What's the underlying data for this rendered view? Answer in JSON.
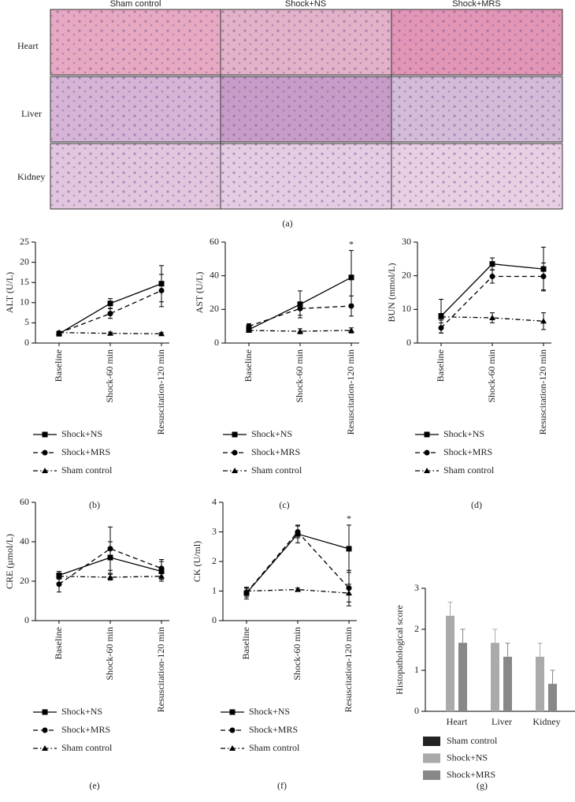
{
  "figure_a": {
    "columns": [
      "Sham control",
      "Shock+NS",
      "Shock+MRS"
    ],
    "rows": [
      "Heart",
      "Liver",
      "Kidney"
    ],
    "label": "(a)"
  },
  "chart_data": [
    {
      "type": "line",
      "panel_label": "(b)",
      "ylabel": "ALT (U/L)",
      "categories": [
        "Baseline",
        "Shock-60 min",
        "Resuscitation-120 min"
      ],
      "ylim": [
        0,
        25
      ],
      "yticks": [
        0,
        5,
        10,
        15,
        20,
        25
      ],
      "series": [
        {
          "name": "Shock+NS",
          "color": "#000000",
          "line_style": "solid",
          "marker": "square",
          "values": [
            2.3,
            9.8,
            14.7
          ],
          "errors": [
            0.5,
            1.2,
            4.5
          ]
        },
        {
          "name": "Shock+MRS",
          "color": "#000000",
          "line_style": "dashed",
          "marker": "circle",
          "values": [
            2.5,
            7.3,
            13.0
          ],
          "errors": [
            0.4,
            1.2,
            4.0
          ]
        },
        {
          "name": "Sham control",
          "color": "#000000",
          "line_style": "dashdot",
          "marker": "triangle",
          "values": [
            2.6,
            2.4,
            2.3
          ],
          "errors": [
            0.3,
            0.3,
            0.3
          ]
        }
      ]
    },
    {
      "type": "line",
      "panel_label": "(c)",
      "ylabel": "AST (U/L)",
      "categories": [
        "Baseline",
        "Shock-60 min",
        "Resuscitation-120 min"
      ],
      "ylim": [
        0,
        60
      ],
      "yticks": [
        0,
        20,
        40,
        60
      ],
      "annotation": "*",
      "series": [
        {
          "name": "Shock+NS",
          "color": "#000000",
          "line_style": "solid",
          "marker": "square",
          "values": [
            8,
            23,
            39
          ],
          "errors": [
            1.5,
            8,
            16
          ]
        },
        {
          "name": "Shock+MRS",
          "color": "#000000",
          "line_style": "dashed",
          "marker": "circle",
          "values": [
            10,
            20.5,
            22
          ],
          "errors": [
            1.5,
            4,
            6
          ]
        },
        {
          "name": "Sham control",
          "color": "#000000",
          "line_style": "dashdot",
          "marker": "triangle",
          "values": [
            7.5,
            7,
            7.5
          ],
          "errors": [
            1,
            1.5,
            1.5
          ]
        }
      ]
    },
    {
      "type": "line",
      "panel_label": "(d)",
      "ylabel": "BUN (mmol/L)",
      "categories": [
        "Baseline",
        "Shock-60 min",
        "Resuscitation-120 min"
      ],
      "ylim": [
        0,
        30
      ],
      "yticks": [
        0,
        10,
        20,
        30
      ],
      "series": [
        {
          "name": "Shock+NS",
          "color": "#000000",
          "line_style": "solid",
          "marker": "square",
          "values": [
            8,
            23.5,
            22
          ],
          "errors": [
            5,
            1.8,
            6.5
          ]
        },
        {
          "name": "Shock+MRS",
          "color": "#000000",
          "line_style": "dashed",
          "marker": "circle",
          "values": [
            4.5,
            19.8,
            19.8
          ],
          "errors": [
            1.5,
            2,
            4
          ]
        },
        {
          "name": "Sham control",
          "color": "#000000",
          "line_style": "dashdot",
          "marker": "triangle",
          "values": [
            7.8,
            7.5,
            6.5
          ],
          "errors": [
            1,
            1.5,
            2.5
          ]
        }
      ]
    },
    {
      "type": "line",
      "panel_label": "(e)",
      "ylabel": "CRE (μmol/L)",
      "categories": [
        "Baseline",
        "Shock-60 min",
        "Resuscitation-120 min"
      ],
      "ylim": [
        0,
        60
      ],
      "yticks": [
        0,
        20,
        40,
        60
      ],
      "series": [
        {
          "name": "Shock+NS",
          "color": "#000000",
          "line_style": "solid",
          "marker": "square",
          "values": [
            23,
            32,
            25
          ],
          "errors": [
            2,
            8,
            5
          ]
        },
        {
          "name": "Shock+MRS",
          "color": "#000000",
          "line_style": "dashed",
          "marker": "circle",
          "values": [
            18.5,
            36.5,
            26.5
          ],
          "errors": [
            4,
            11,
            4.5
          ]
        },
        {
          "name": "Sham control",
          "color": "#000000",
          "line_style": "dashdot",
          "marker": "triangle",
          "values": [
            22.5,
            22,
            22.5
          ],
          "errors": [
            1,
            1.5,
            1.5
          ]
        }
      ]
    },
    {
      "type": "line",
      "panel_label": "(f)",
      "ylabel": "CK (U/ml)",
      "categories": [
        "Baseline",
        "Shock-60 min",
        "Resuscitation-120 min"
      ],
      "ylim": [
        0,
        4
      ],
      "yticks": [
        0,
        1,
        2,
        3,
        4
      ],
      "annotation": "*",
      "series": [
        {
          "name": "Shock+NS",
          "color": "#000000",
          "line_style": "solid",
          "marker": "square",
          "values": [
            0.93,
            2.93,
            2.43
          ],
          "errors": [
            0.2,
            0.3,
            0.8
          ]
        },
        {
          "name": "Shock+MRS",
          "color": "#000000",
          "line_style": "dashed",
          "marker": "circle",
          "values": [
            0.95,
            3.0,
            1.1
          ],
          "errors": [
            0.15,
            0.2,
            0.6
          ]
        },
        {
          "name": "Sham control",
          "color": "#000000",
          "line_style": "dashdot",
          "marker": "triangle",
          "values": [
            1.0,
            1.05,
            0.93
          ],
          "errors": [
            0.1,
            0.05,
            0.3
          ]
        }
      ]
    },
    {
      "type": "bar",
      "panel_label": "(g)",
      "ylabel": "Histopathological score",
      "categories": [
        "Heart",
        "Liver",
        "Kidney"
      ],
      "ylim": [
        0,
        3
      ],
      "yticks": [
        0,
        1,
        2,
        3
      ],
      "series": [
        {
          "name": "Sham control",
          "color": "#222222",
          "values": [
            0,
            0,
            0
          ],
          "errors": [
            0,
            0,
            0
          ]
        },
        {
          "name": "Shock+NS",
          "color": "#aaaaaa",
          "values": [
            2.33,
            1.67,
            1.33
          ],
          "errors": [
            0.33,
            0.33,
            0.33
          ]
        },
        {
          "name": "Shock+MRS",
          "color": "#888888",
          "values": [
            1.67,
            1.33,
            0.67
          ],
          "errors": [
            0.33,
            0.33,
            0.33
          ]
        }
      ]
    }
  ]
}
